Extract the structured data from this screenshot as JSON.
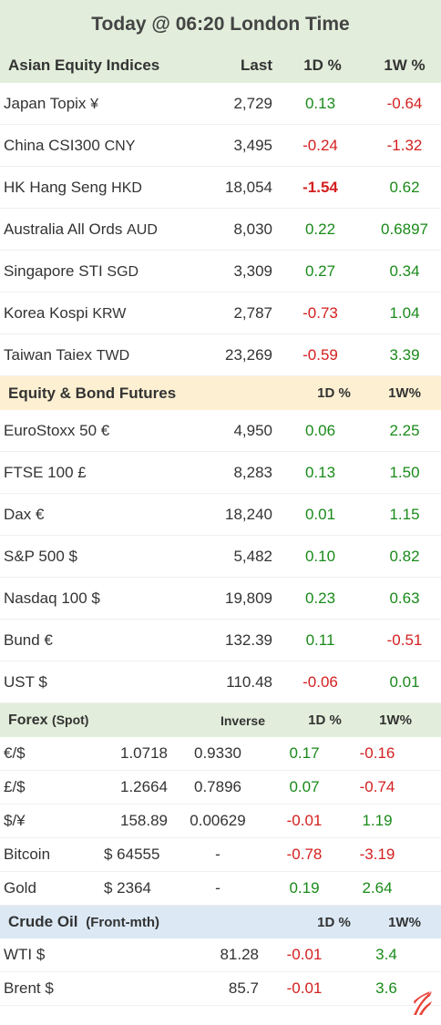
{
  "title": "Today @ 06:20 London Time",
  "colors": {
    "positive": "#1a8a1a",
    "negative": "#d42020",
    "asia_header": "#e2eedb",
    "futures_header": "#fdf0d2",
    "forex_header": "#e2eedb",
    "oil_header": "#dce9f5"
  },
  "asia": {
    "header": "Asian Equity Indices",
    "col_last": "Last",
    "col_1d": "1D %",
    "col_1w": "1W %",
    "rows": [
      {
        "name": "Japan Topix ",
        "ccy": "¥",
        "last": "2,729",
        "d": "0.13",
        "w": "-0.64"
      },
      {
        "name": "China CSI300 ",
        "ccy": "CNY",
        "last": "3,495",
        "d": "-0.24",
        "w": "-1.32"
      },
      {
        "name": "HK Hang Seng ",
        "ccy": "HKD",
        "last": "18,054",
        "d": "-1.54",
        "w": "0.62"
      },
      {
        "name": "Australia All Ords ",
        "ccy": "AUD",
        "last": "8,030",
        "d": "0.22",
        "w": "0.6897"
      },
      {
        "name": "Singapore STI ",
        "ccy": "SGD",
        "last": "3,309",
        "d": "0.27",
        "w": "0.34"
      },
      {
        "name": "Korea Kospi ",
        "ccy": "KRW",
        "last": "2,787",
        "d": "-0.73",
        "w": "1.04"
      },
      {
        "name": "Taiwan Taiex ",
        "ccy": "TWD",
        "last": "23,269",
        "d": "-0.59",
        "w": "3.39"
      }
    ]
  },
  "futures": {
    "header": "Equity & Bond Futures",
    "col_1d": "1D %",
    "col_1w": "1W%",
    "rows": [
      {
        "name": "EuroStoxx 50 €",
        "last": "4,950",
        "d": "0.06",
        "w": "2.25"
      },
      {
        "name": "FTSE 100  £",
        "last": "8,283",
        "d": "0.13",
        "w": "1.50"
      },
      {
        "name": "Dax  €",
        "last": "18,240",
        "d": "0.01",
        "w": "1.15"
      },
      {
        "name": "S&P 500 $",
        "last": "5,482",
        "d": "0.10",
        "w": "0.82"
      },
      {
        "name": "Nasdaq 100 $",
        "last": "19,809",
        "d": "0.23",
        "w": "0.63"
      },
      {
        "name": "Bund  €",
        "last": "132.39",
        "d": "0.11",
        "w": "-0.51"
      },
      {
        "name": "UST $",
        "last": "110.48",
        "d": "-0.06",
        "w": "0.01"
      }
    ]
  },
  "forex": {
    "header": "Forex",
    "header_sub": "(Spot)",
    "col_inverse": "Inverse",
    "col_1d": "1D %",
    "col_1w": "1W%",
    "rows": [
      {
        "name": "€/$",
        "spot": "1.0718",
        "inverse": "0.9330",
        "d": "0.17",
        "w": "-0.16"
      },
      {
        "name": "£/$",
        "spot": "1.2664",
        "inverse": "0.7896",
        "d": "0.07",
        "w": "-0.74"
      },
      {
        "name": "$/¥",
        "spot": "158.89",
        "inverse": "0.00629",
        "d": "-0.01",
        "w": "1.19"
      },
      {
        "name": "Bitcoin",
        "spot": "$ 64555",
        "inverse": "-",
        "d": "-0.78",
        "w": "-3.19"
      },
      {
        "name": "Gold",
        "spot": "$ 2364",
        "inverse": "-",
        "d": "0.19",
        "w": "2.64"
      }
    ]
  },
  "oil": {
    "header": "Crude Oil",
    "header_sub": "(Front-mth)",
    "col_1d": "1D %",
    "col_1w": "1W%",
    "rows": [
      {
        "name": "WTI  $",
        "last": "81.28",
        "d": "-0.01",
        "w": "3.4"
      },
      {
        "name": "Brent $",
        "last": "85.7",
        "d": "-0.01",
        "w": "3.6"
      }
    ]
  },
  "logo_icon": "flame-logo-icon"
}
